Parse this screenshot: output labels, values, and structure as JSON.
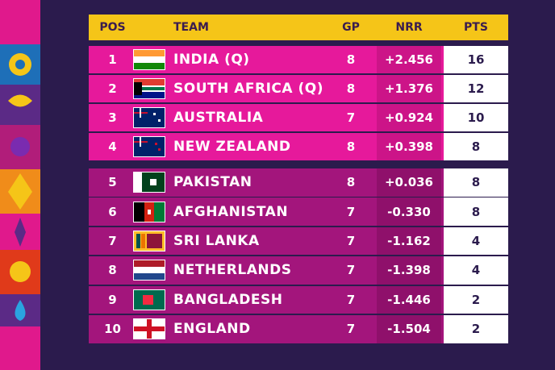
{
  "table": {
    "header": [
      "POS",
      "TEAM",
      "GP",
      "NRR",
      "PTS"
    ],
    "rows": [
      [
        "1",
        "INDIA (Q)",
        "8",
        "+2.456",
        "16"
      ],
      [
        "2",
        "SOUTH AFRICA (Q)",
        "8",
        "+1.376",
        "12"
      ],
      [
        "3",
        "AUSTRALIA",
        "7",
        "+0.924",
        "10"
      ],
      [
        "4",
        "NEW ZEALAND",
        "8",
        "+0.398",
        "8"
      ],
      [
        "5",
        "PAKISTAN",
        "8",
        "+0.036",
        "8"
      ],
      [
        "6",
        "AFGHANISTAN",
        "7",
        "-0.330",
        "8"
      ],
      [
        "7",
        "SRI LANKA",
        "7",
        "-1.162",
        "4"
      ],
      [
        "8",
        "NETHERLANDS",
        "7",
        "-1.398",
        "4"
      ],
      [
        "9",
        "BANGLADESH",
        "7",
        "-1.446",
        "2"
      ],
      [
        "10",
        "ENGLAND",
        "7",
        "-1.504",
        "2"
      ]
    ]
  }
}
